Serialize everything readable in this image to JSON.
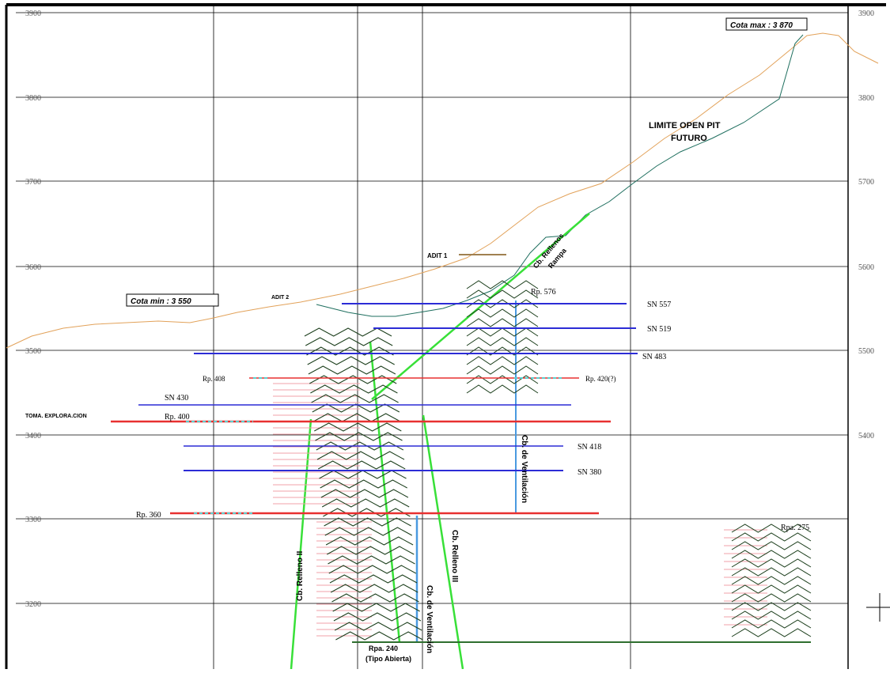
{
  "colors": {
    "grid": "#000000",
    "surface": "#e2a25a",
    "pit_limit": "#1f6f5f",
    "blue_level": "#2c2cd6",
    "red_level": "#e83030",
    "faint_red": "#f2a0a8",
    "green_hatch": "#1a3d1a",
    "green_fault": "#38e038",
    "cyan_mark": "#5ccfcf",
    "blue_shaft": "#4a9ae0"
  },
  "axis": {
    "left_ticks": [
      "3900",
      "3800",
      "3700",
      "3600",
      "3500",
      "3400",
      "3300",
      "3200"
    ],
    "right_ticks": [
      "3900",
      "3800",
      "5700",
      "5600",
      "5500",
      "5400"
    ]
  },
  "labels": {
    "cota_max": "Cota max : 3 870",
    "cota_min": "Cota min : 3 550",
    "limite": [
      "LIMITE OPEN PIT",
      "FUTURO"
    ],
    "adit1": "ADIT 1",
    "adit2": "ADIT 2",
    "toma": "TOMA. EXPLORA.CION",
    "cb_rellenos_upper": "Cb. Rellenos",
    "cb_rellenos_upper2": "Rampa",
    "rp_576": "Rp. 576",
    "sn_block1": "SN 557",
    "sn_block2": "SN 519",
    "sn_block3": "SN 483",
    "rp_408": "Rp. 408",
    "rp_420_right": "Rp. 420(?)",
    "sn_430": "SN 430",
    "rp_400": "Rp. 400",
    "sn_418": "SN 418",
    "sn_380": "SN 380",
    "rp_360": "Rp. 360",
    "cb_ventilacion_right": "Cb. de Ventilación",
    "rp_275": "Rpa. 275",
    "cb_relleno_ii": "Cb. Relleno II",
    "cb_ventilacion_lower": "Cb. de Ventilación",
    "cb_relleno_iii": "Cb. Relleno III",
    "rpa_240": [
      "Rpa. 240",
      "(Tipo Abierta)"
    ]
  }
}
